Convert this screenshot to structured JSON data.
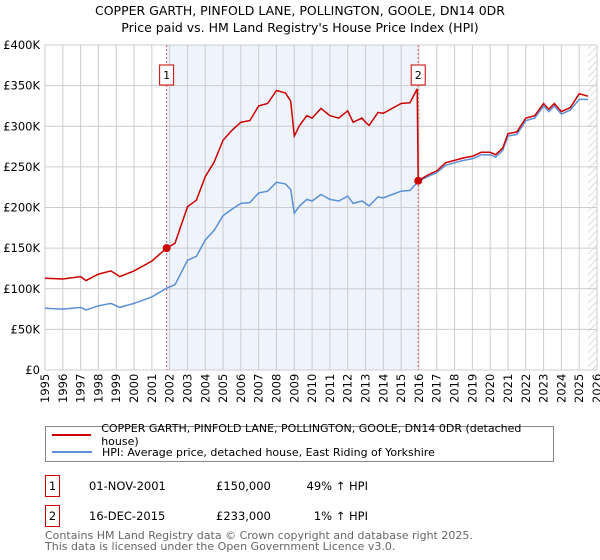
{
  "chart_data": {
    "type": "line",
    "title": "COPPER GARTH, PINFOLD LANE, POLLINGTON, GOOLE, DN14 0DR",
    "subtitle": "Price paid vs. HM Land Registry's House Price Index (HPI)",
    "xlim": [
      1995,
      2026
    ],
    "ylim": [
      0,
      400000
    ],
    "x_ticks": [
      "1995",
      "1996",
      "1997",
      "1998",
      "1999",
      "2000",
      "2001",
      "2002",
      "2003",
      "2004",
      "2005",
      "2006",
      "2007",
      "2008",
      "2009",
      "2010",
      "2011",
      "2012",
      "2013",
      "2014",
      "2015",
      "2016",
      "2017",
      "2018",
      "2019",
      "2020",
      "2021",
      "2022",
      "2023",
      "2024",
      "2025",
      "2026"
    ],
    "y_ticks": [
      {
        "v": 0,
        "label": "£0"
      },
      {
        "v": 50000,
        "label": "£50K"
      },
      {
        "v": 100000,
        "label": "£100K"
      },
      {
        "v": 150000,
        "label": "£150K"
      },
      {
        "v": 200000,
        "label": "£200K"
      },
      {
        "v": 250000,
        "label": "£250K"
      },
      {
        "v": 300000,
        "label": "£300K"
      },
      {
        "v": 350000,
        "label": "£350K"
      },
      {
        "v": 400000,
        "label": "£400K"
      }
    ],
    "grid": true,
    "shaded_range": [
      2001.83,
      2015.96
    ],
    "hatched_from": 2025.5,
    "series": [
      {
        "name": "COPPER GARTH, PINFOLD LANE, POLLINGTON, GOOLE, DN14 0DR (detached house)",
        "color": "#cc0000",
        "x": [
          1995,
          1996,
          1997,
          1997.3,
          1998,
          1998.7,
          1999.2,
          2000,
          2001,
          2001.83,
          2002.3,
          2003,
          2003.5,
          2004,
          2004.5,
          2005,
          2005.5,
          2006,
          2006.5,
          2007,
          2007.5,
          2008,
          2008.5,
          2008.8,
          2009,
          2009.3,
          2009.7,
          2010,
          2010.5,
          2011,
          2011.5,
          2012,
          2012.3,
          2012.8,
          2013,
          2013.2,
          2013.7,
          2014,
          2014.5,
          2015,
          2015.5,
          2015.9,
          2015.96,
          2016.5,
          2017,
          2017.5,
          2018,
          2018.5,
          2019,
          2019.5,
          2020,
          2020.3,
          2020.7,
          2021,
          2021.5,
          2022,
          2022.5,
          2023,
          2023.3,
          2023.6,
          2024,
          2024.5,
          2025,
          2025.5
        ],
        "y": [
          113,
          112,
          115,
          110,
          118,
          122,
          115,
          122,
          134,
          150,
          156,
          201,
          209,
          238,
          256,
          283,
          295,
          305,
          307,
          325,
          328,
          344,
          341,
          331,
          288,
          301,
          313,
          310,
          322,
          313,
          310,
          319,
          305,
          310,
          305,
          301,
          317,
          316,
          322,
          328,
          329,
          346,
          233,
          240,
          245,
          255,
          258,
          261,
          263,
          268,
          268,
          265,
          273,
          291,
          293,
          310,
          313,
          328,
          321,
          328,
          318,
          323,
          340,
          337
        ]
      },
      {
        "name": "HPI: Average price, detached house, East Riding of Yorkshire",
        "color": "#5b8fd6",
        "x": [
          1995,
          1996,
          1997,
          1997.3,
          1998,
          1998.7,
          1999.2,
          2000,
          2001,
          2001.83,
          2002.3,
          2003,
          2003.5,
          2004,
          2004.5,
          2005,
          2005.5,
          2006,
          2006.5,
          2007,
          2007.5,
          2008,
          2008.5,
          2008.8,
          2009,
          2009.3,
          2009.7,
          2010,
          2010.5,
          2011,
          2011.5,
          2012,
          2012.3,
          2012.8,
          2013,
          2013.2,
          2013.7,
          2014,
          2014.5,
          2015,
          2015.5,
          2015.96,
          2016.5,
          2017,
          2017.5,
          2018,
          2018.5,
          2019,
          2019.5,
          2020,
          2020.3,
          2020.7,
          2021,
          2021.5,
          2022,
          2022.5,
          2023,
          2023.3,
          2023.6,
          2024,
          2024.5,
          2025,
          2025.5
        ],
        "y": [
          76,
          75,
          77,
          74,
          79,
          82,
          77,
          82,
          90,
          100.7,
          105,
          135,
          140,
          160,
          172,
          190,
          198,
          205,
          206,
          218,
          220,
          231,
          229,
          222,
          193,
          202,
          210,
          208,
          216,
          210,
          208,
          214,
          205,
          208,
          205,
          202,
          213,
          212,
          216,
          220,
          221,
          232,
          238,
          243,
          252,
          255,
          258,
          260,
          265,
          265,
          262,
          270,
          288,
          290,
          307,
          310,
          325,
          318,
          325,
          315,
          320,
          333,
          333
        ]
      }
    ],
    "y_unit_multiplier": 1000,
    "markers": [
      {
        "label": "1",
        "x": 2001.83,
        "y": 150000
      },
      {
        "label": "2",
        "x": 2015.96,
        "y": 233000
      }
    ]
  },
  "legend": {
    "red": "COPPER GARTH, PINFOLD LANE, POLLINGTON, GOOLE, DN14 0DR (detached house)",
    "blue": "HPI: Average price, detached house, East Riding of Yorkshire"
  },
  "transactions": [
    {
      "num": "1",
      "date": "01-NOV-2001",
      "price": "£150,000",
      "hpi": "49% ↑ HPI"
    },
    {
      "num": "2",
      "date": "16-DEC-2015",
      "price": "£233,000",
      "hpi": "1% ↑ HPI"
    }
  ],
  "footer": {
    "line1": "Contains HM Land Registry data © Crown copyright and database right 2025.",
    "line2": "This data is licensed under the Open Government Licence v3.0."
  }
}
